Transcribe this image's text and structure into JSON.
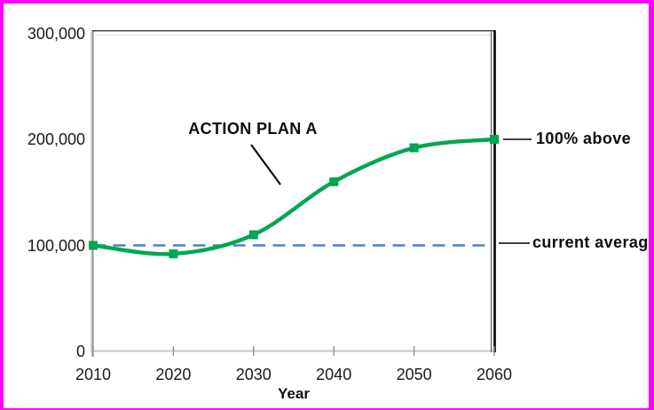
{
  "page": {
    "background": "#FFFFFF",
    "frame_color": "#FF00FF"
  },
  "chart_data": {
    "type": "line",
    "x": [
      2010,
      2020,
      2030,
      2040,
      2050,
      2060
    ],
    "series": [
      {
        "name": "ACTION PLAN A",
        "values": [
          100000,
          92000,
          110000,
          160000,
          192000,
          200000
        ],
        "color": "#00A651",
        "marker": "square",
        "line_style": "solid-smooth"
      },
      {
        "name": "current average",
        "values": [
          100000,
          100000,
          100000,
          100000,
          100000,
          100000
        ],
        "color": "#4F81BD",
        "marker": "none",
        "line_style": "dashed"
      }
    ],
    "title": "",
    "xlabel": "Year",
    "ylabel": "",
    "xlim": [
      2010,
      2060
    ],
    "ylim": [
      0,
      300000
    ],
    "xticks": [
      2010,
      2020,
      2030,
      2040,
      2050,
      2060
    ],
    "xtick_labels": [
      "2010",
      "2020",
      "2030",
      "2040",
      "2050",
      "2060"
    ],
    "yticks": [
      0,
      100000,
      200000,
      300000
    ],
    "ytick_labels": [
      "0",
      "100,000",
      "200,000",
      "300,000"
    ],
    "grid": false,
    "legend_position": "none"
  },
  "annotations": {
    "action_plan": "ACTION PLAN A",
    "above": "100% above",
    "current_average": "current average"
  }
}
